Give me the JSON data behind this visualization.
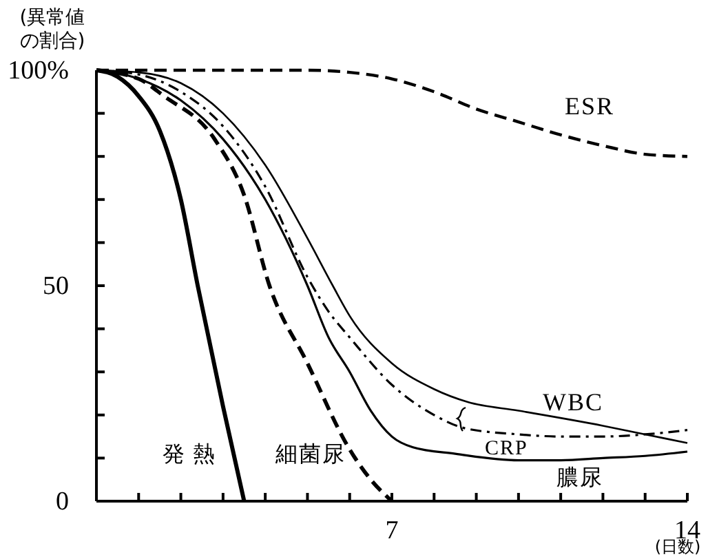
{
  "chart_data": {
    "type": "line",
    "ylabel": "(異常値の割合)",
    "xlabel": "(日数)",
    "xlim": [
      0,
      14
    ],
    "ylim": [
      0,
      100
    ],
    "xticks": [
      {
        "value": 0,
        "label": null
      },
      {
        "value": 1,
        "label": null
      },
      {
        "value": 2,
        "label": null
      },
      {
        "value": 3,
        "label": null
      },
      {
        "value": 4,
        "label": null
      },
      {
        "value": 5,
        "label": null
      },
      {
        "value": 6,
        "label": null
      },
      7,
      {
        "value": 8,
        "label": null
      },
      {
        "value": 9,
        "label": null
      },
      {
        "value": 10,
        "label": null
      },
      {
        "value": 11,
        "label": null
      },
      {
        "value": 12,
        "label": null
      },
      {
        "value": 13,
        "label": null
      },
      14
    ],
    "yticks": [
      0,
      {
        "value": 10,
        "label": null
      },
      {
        "value": 20,
        "label": null
      },
      {
        "value": 30,
        "label": null
      },
      {
        "value": 40,
        "label": null
      },
      50,
      {
        "value": 60,
        "label": null
      },
      {
        "value": 70,
        "label": null
      },
      {
        "value": 80,
        "label": null
      },
      {
        "value": 90,
        "label": null
      },
      {
        "value": 100,
        "label": "100%"
      }
    ],
    "grid": false,
    "marker": "none",
    "series": [
      {
        "name": "発熱",
        "color": "#000000",
        "line_style": "solid",
        "x": [
          0,
          0.5,
          1,
          1.5,
          2,
          2.4,
          3,
          3.5
        ],
        "values": [
          100,
          98.5,
          94,
          86,
          70,
          50,
          22,
          0
        ]
      },
      {
        "name": "細菌尿",
        "color": "#000000",
        "line_style": "dashed",
        "x": [
          0,
          1,
          1.6,
          2.8,
          3.5,
          4.1,
          5,
          6,
          6.5,
          7
        ],
        "values": [
          100,
          98,
          94,
          84,
          71,
          50,
          32,
          12,
          5,
          0
        ]
      },
      {
        "name": "膿尿",
        "color": "#000000",
        "line_style": "solid",
        "x": [
          0,
          1,
          2,
          3,
          4,
          5,
          5.5,
          6,
          6.5,
          7,
          7.5,
          8.5,
          10,
          11,
          12,
          13,
          14
        ],
        "values": [
          100,
          98,
          93,
          84,
          70,
          50,
          38,
          30,
          21,
          15,
          12.5,
          11,
          9.5,
          9.5,
          10,
          10.5,
          11.5
        ]
      },
      {
        "name": "CRP",
        "color": "#000000",
        "line_style": "dashdot",
        "x": [
          0,
          1,
          2,
          3,
          4,
          5,
          5.5,
          6,
          7,
          8,
          8.7,
          10,
          11,
          12,
          13,
          14
        ],
        "values": [
          100,
          99,
          95,
          87,
          73,
          52,
          44,
          38,
          27,
          20,
          17,
          15.5,
          15,
          15,
          15.5,
          16.5
        ]
      },
      {
        "name": "WBC",
        "color": "#000000",
        "line_style": "solid",
        "x": [
          0,
          1,
          2,
          3,
          4,
          5,
          5.6,
          6,
          7,
          8,
          8.8,
          10,
          12,
          13,
          14
        ],
        "values": [
          100,
          99.5,
          97,
          90,
          78,
          61,
          50,
          43,
          32,
          26,
          23,
          21,
          17.5,
          15.5,
          13.5
        ]
      },
      {
        "name": "ESR",
        "color": "#000000",
        "line_style": "dashed",
        "x": [
          0,
          2,
          4,
          5,
          6,
          7,
          8,
          9,
          10,
          11,
          12,
          13,
          14
        ],
        "values": [
          100,
          100,
          100,
          100,
          99.5,
          98,
          95,
          91,
          88,
          85,
          82.5,
          80.5,
          80
        ]
      }
    ]
  }
}
